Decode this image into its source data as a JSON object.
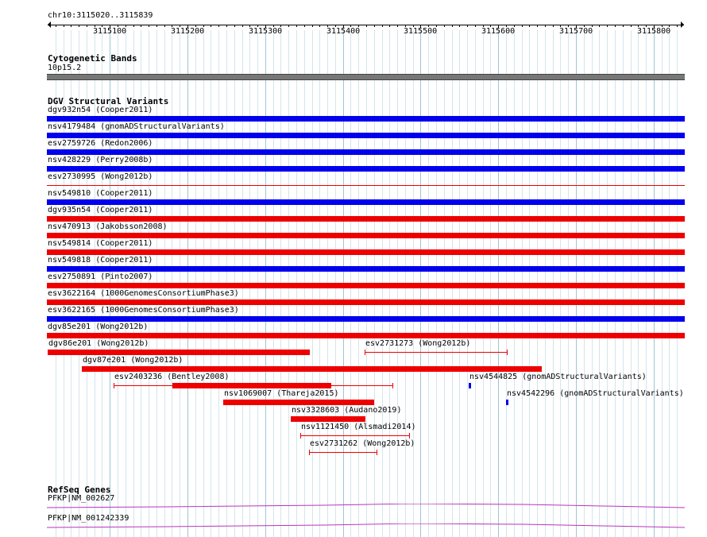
{
  "location": "chr10:3115020..3115839",
  "ruler": {
    "ticks": [
      {
        "pos": 3115100,
        "label": "3115100"
      },
      {
        "pos": 3115200,
        "label": "3115200"
      },
      {
        "pos": 3115300,
        "label": "3115300"
      },
      {
        "pos": 3115400,
        "label": "3115400"
      },
      {
        "pos": 3115500,
        "label": "3115500"
      },
      {
        "pos": 3115600,
        "label": "3115600"
      },
      {
        "pos": 3115700,
        "label": "3115700"
      },
      {
        "pos": 3115800,
        "label": "3115800"
      }
    ]
  },
  "cytobands": {
    "title": "Cytogenetic Bands",
    "band_label": "10p15.2",
    "band_color": "#777777"
  },
  "dgv": {
    "title": "DGV Structural Variants",
    "colors": {
      "gain": "#0000ee",
      "loss": "#ee0000"
    },
    "features": [
      {
        "label": "dgv932n54 (Cooper2011)",
        "type": "gain",
        "style": "bar",
        "full": true
      },
      {
        "label": "nsv4179484 (gnomADStructuralVariants)",
        "type": "gain",
        "style": "bar",
        "full": true
      },
      {
        "label": "esv2759726 (Redon2006)",
        "type": "gain",
        "style": "bar",
        "full": true
      },
      {
        "label": "nsv428229 (Perry2008b)",
        "type": "gain",
        "style": "bar",
        "full": true
      },
      {
        "label": "esv2730995 (Wong2012b)",
        "type": "loss",
        "style": "line",
        "full": true
      },
      {
        "label": "nsv549810 (Cooper2011)",
        "type": "gain",
        "style": "bar",
        "full": true
      },
      {
        "label": "dgv935n54 (Cooper2011)",
        "type": "loss",
        "style": "bar",
        "full": true
      },
      {
        "label": "nsv470913 (Jakobsson2008)",
        "type": "loss",
        "style": "bar",
        "full": true
      },
      {
        "label": "nsv549814 (Cooper2011)",
        "type": "loss",
        "style": "bar",
        "full": true
      },
      {
        "label": "nsv549818 (Cooper2011)",
        "type": "gain",
        "style": "bar",
        "full": true
      },
      {
        "label": "esv2750891 (Pinto2007)",
        "type": "loss",
        "style": "bar",
        "full": true
      },
      {
        "label": "esv3622164 (1000GenomesConsortiumPhase3)",
        "type": "loss",
        "style": "bar",
        "full": true
      },
      {
        "label": "esv3622165 (1000GenomesConsortiumPhase3)",
        "type": "gain",
        "style": "bar",
        "full": true
      },
      {
        "label": "dgv85e201 (Wong2012b)",
        "type": "loss",
        "style": "bar",
        "full": true
      },
      {
        "label": "dgv86e201 (Wong2012b)",
        "type": "loss",
        "style": "bar",
        "row": 14,
        "start": 3115020,
        "end": 3115357
      },
      {
        "label": "esv2731273 (Wong2012b)",
        "type": "loss",
        "style": "line",
        "row": 14,
        "start": 3115428,
        "end": 3115612
      },
      {
        "label": "dgv87e201 (Wong2012b)",
        "type": "loss",
        "style": "bar",
        "row": 15,
        "start": 3115064,
        "end": 3115656
      },
      {
        "label": "esv2403236 (Bentley2008)",
        "type": "loss",
        "style": "mixed",
        "row": 16,
        "start": 3115105,
        "end": 3115465,
        "thick_start": 3115181,
        "thick_end": 3115385
      },
      {
        "label": "nsv4544825 (gnomADStructuralVariants)",
        "type": "gain",
        "style": "bar",
        "row": 16,
        "start": 3115562,
        "end": 3115565
      },
      {
        "label": "nsv1069007 (Thareja2015)",
        "type": "loss",
        "style": "bar",
        "row": 17,
        "start": 3115246,
        "end": 3115440
      },
      {
        "label": "nsv4542296 (gnomADStructuralVariants)",
        "type": "gain",
        "style": "bar",
        "row": 17,
        "start": 3115610,
        "end": 3115612
      },
      {
        "label": "nsv3328603 (Audano2019)",
        "type": "loss",
        "style": "bar",
        "row": 18,
        "start": 3115333,
        "end": 3115429
      },
      {
        "label": "nsv1121450 (Alsmadi2014)",
        "type": "loss",
        "style": "line",
        "row": 19,
        "start": 3115345,
        "end": 3115486
      },
      {
        "label": "esv2731262 (Wong2012b)",
        "type": "loss",
        "style": "line",
        "row": 20,
        "start": 3115356,
        "end": 3115444
      }
    ]
  },
  "refseq": {
    "title": "RefSeq Genes",
    "color": "#bb33bb",
    "genes": [
      {
        "label": "PFKP|NM_002627"
      },
      {
        "label": "PFKP|NM_001242339"
      }
    ]
  }
}
